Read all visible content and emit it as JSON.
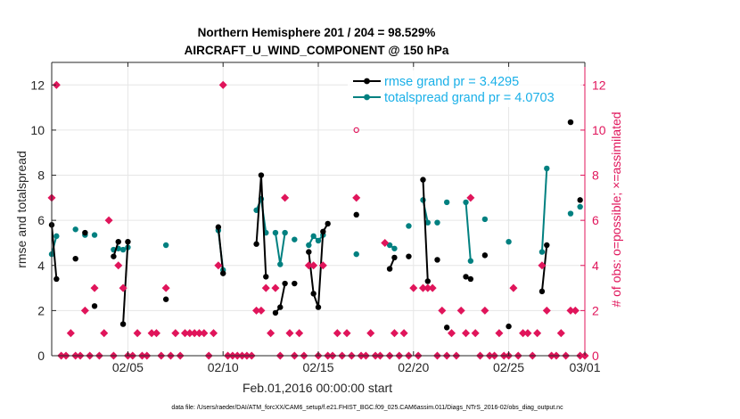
{
  "chart_data": {
    "type": "line",
    "title_line1": "Northern Hemisphere 201  / 204 = 98.529%",
    "title_line2": "AIRCRAFT_U_WIND_COMPONENT @ 150 hPa",
    "xlabel": "Feb.01,2016 00:00:00 start",
    "ylabel_left": "rmse and totalspread",
    "ylabel_right": "# of obs: o=possible; ×=assimilated",
    "footer": "data file: /Users/raeder/DAI/ATM_forcXX/CAM6_setup/f.e21.FHIST_BGC.f09_025.CAM6assim.011/Diags_NTrS_2016-02/obs_diag_output.nc",
    "xlim": [
      1,
      29
    ],
    "ylim_left": [
      0,
      13
    ],
    "ylim_right": [
      0,
      13
    ],
    "x_ticks": [
      5,
      10,
      15,
      20,
      25,
      29
    ],
    "x_tick_labels": [
      "02/05",
      "02/10",
      "02/15",
      "02/20",
      "02/25",
      "03/01"
    ],
    "y_ticks_left": [
      0,
      2,
      4,
      6,
      8,
      10,
      12
    ],
    "y_tick_labels_left": [
      "0",
      "2",
      "4",
      "6",
      "8",
      "10",
      "12"
    ],
    "y_ticks_right": [
      0,
      2,
      4,
      6,
      8,
      10,
      12
    ],
    "y_tick_labels_right": [
      "0",
      "2",
      "4",
      "6",
      "8",
      "10",
      "12"
    ],
    "grid": true,
    "legend_position": "top-right",
    "colors": {
      "rmse": "#000000",
      "totalspread": "#008080",
      "obs": "#e0155b",
      "legend_text": "#1ab0e8",
      "axes": "#262626",
      "grid": "#e6e6e6"
    },
    "series": [
      {
        "name": "rmse grand pr = 3.4295",
        "segments": [
          [
            [
              1.0,
              5.8
            ],
            [
              1.25,
              3.4
            ]
          ],
          [
            [
              2.25,
              4.3
            ]
          ],
          [
            [
              2.75,
              5.45
            ]
          ],
          [
            [
              3.25,
              2.2
            ]
          ],
          [
            [
              4.25,
              4.4
            ],
            [
              4.5,
              5.05
            ]
          ],
          [
            [
              4.75,
              1.4
            ],
            [
              5.0,
              5.05
            ]
          ],
          [
            [
              7.0,
              2.5
            ]
          ],
          [
            [
              9.75,
              5.7
            ],
            [
              10.0,
              3.65
            ]
          ],
          [
            [
              11.75,
              4.95
            ],
            [
              12.0,
              8.0
            ],
            [
              12.25,
              3.5
            ]
          ],
          [
            [
              12.75,
              1.9
            ],
            [
              13.0,
              2.15
            ],
            [
              13.25,
              3.2
            ]
          ],
          [
            [
              13.75,
              3.2
            ]
          ],
          [
            [
              14.5,
              4.6
            ],
            [
              14.75,
              2.75
            ],
            [
              15.0,
              2.15
            ],
            [
              15.25,
              5.5
            ],
            [
              15.5,
              5.85
            ]
          ],
          [
            [
              17.0,
              6.25
            ]
          ],
          [
            [
              18.75,
              3.85
            ],
            [
              19.0,
              4.35
            ]
          ],
          [
            [
              19.75,
              4.4
            ]
          ],
          [
            [
              20.5,
              7.8
            ],
            [
              20.75,
              3.3
            ]
          ],
          [
            [
              21.25,
              4.25
            ]
          ],
          [
            [
              21.75,
              1.25
            ]
          ],
          [
            [
              22.75,
              3.5
            ],
            [
              23.0,
              3.4
            ]
          ],
          [
            [
              23.75,
              4.45
            ]
          ],
          [
            [
              25.0,
              1.3
            ]
          ],
          [
            [
              26.75,
              2.85
            ],
            [
              27.0,
              4.9
            ]
          ],
          [
            [
              28.25,
              10.35
            ]
          ],
          [
            [
              28.75,
              6.9
            ]
          ]
        ]
      },
      {
        "name": "totalspread grand pr = 4.0703",
        "segments": [
          [
            [
              1.0,
              4.5
            ],
            [
              1.25,
              5.3
            ]
          ],
          [
            [
              2.25,
              5.6
            ]
          ],
          [
            [
              2.75,
              5.35
            ]
          ],
          [
            [
              3.25,
              5.35
            ]
          ],
          [
            [
              4.25,
              4.7
            ],
            [
              4.5,
              4.75
            ]
          ],
          [
            [
              4.75,
              4.7
            ],
            [
              5.0,
              4.8
            ]
          ],
          [
            [
              7.0,
              4.9
            ]
          ],
          [
            [
              9.75,
              5.55
            ],
            [
              10.0,
              3.8
            ]
          ],
          [
            [
              11.75,
              6.45
            ],
            [
              12.0,
              6.95
            ],
            [
              12.25,
              5.45
            ]
          ],
          [
            [
              12.75,
              5.45
            ],
            [
              13.0,
              4.05
            ],
            [
              13.25,
              5.45
            ]
          ],
          [
            [
              13.75,
              5.15
            ]
          ],
          [
            [
              14.5,
              4.9
            ],
            [
              14.75,
              5.3
            ],
            [
              15.0,
              5.1
            ],
            [
              15.25,
              5.35
            ]
          ],
          [
            [
              17.0,
              4.5
            ]
          ],
          [
            [
              18.75,
              4.9
            ],
            [
              19.0,
              4.75
            ]
          ],
          [
            [
              19.75,
              5.75
            ]
          ],
          [
            [
              20.5,
              6.9
            ],
            [
              20.75,
              5.9
            ]
          ],
          [
            [
              21.25,
              5.9
            ]
          ],
          [
            [
              21.75,
              6.8
            ]
          ],
          [
            [
              22.75,
              6.8
            ],
            [
              23.0,
              4.2
            ]
          ],
          [
            [
              23.75,
              6.05
            ]
          ],
          [
            [
              25.0,
              5.05
            ]
          ],
          [
            [
              26.75,
              4.6
            ],
            [
              27.0,
              8.3
            ]
          ],
          [
            [
              28.25,
              6.3
            ]
          ],
          [
            [
              28.75,
              6.6
            ]
          ]
        ]
      },
      {
        "name": "obs_possible",
        "values_x": [
          17.0
        ],
        "values_y": [
          10.0
        ]
      },
      {
        "name": "obs_assimilated",
        "x": [
          1.0,
          1.25,
          1.5,
          1.75,
          2.0,
          2.25,
          2.5,
          2.75,
          3.0,
          3.25,
          3.5,
          3.75,
          4.0,
          4.25,
          4.5,
          4.75,
          5.0,
          5.25,
          5.5,
          5.75,
          6.0,
          6.25,
          6.5,
          6.75,
          7.0,
          7.25,
          7.5,
          7.75,
          8.0,
          8.25,
          8.5,
          8.75,
          9.0,
          9.25,
          9.5,
          9.75,
          10.0,
          10.25,
          10.5,
          10.75,
          11.0,
          11.25,
          11.5,
          11.75,
          12.0,
          12.25,
          12.5,
          12.75,
          13.0,
          13.25,
          13.5,
          13.75,
          14.0,
          14.25,
          14.5,
          14.75,
          15.0,
          15.25,
          15.5,
          15.75,
          16.0,
          16.25,
          16.5,
          16.75,
          17.0,
          17.25,
          17.5,
          17.75,
          18.0,
          18.25,
          18.5,
          18.75,
          19.0,
          19.25,
          19.5,
          19.75,
          20.0,
          20.25,
          20.5,
          20.75,
          21.0,
          21.25,
          21.5,
          21.75,
          22.0,
          22.25,
          22.5,
          22.75,
          23.0,
          23.25,
          23.5,
          23.75,
          24.0,
          24.25,
          24.5,
          24.75,
          25.0,
          25.25,
          25.5,
          25.75,
          26.0,
          26.25,
          26.5,
          26.75,
          27.0,
          27.25,
          27.5,
          27.75,
          28.0,
          28.25,
          28.5,
          28.75,
          29.0
        ],
        "y": [
          7,
          12,
          0,
          0,
          1,
          0,
          0,
          2,
          0,
          3,
          0,
          1,
          6,
          0,
          4,
          3,
          0,
          0,
          1,
          0,
          0,
          1,
          1,
          0,
          3,
          0,
          1,
          0,
          1,
          1,
          1,
          1,
          1,
          0,
          1,
          4,
          12,
          0,
          0,
          0,
          0,
          0,
          0,
          2,
          2,
          3,
          1,
          3,
          0,
          7,
          1,
          0,
          1,
          0,
          4,
          4,
          0,
          4,
          0,
          0,
          1,
          0,
          1,
          0,
          7,
          0,
          0,
          1,
          0,
          0,
          5,
          0,
          1,
          0,
          1,
          0,
          3,
          0,
          3,
          3,
          3,
          0,
          2,
          0,
          1,
          0,
          2,
          1,
          7,
          1,
          0,
          2,
          0,
          0,
          1,
          0,
          0,
          3,
          0,
          1,
          1,
          0,
          1,
          4,
          2,
          0,
          0,
          1,
          0,
          2,
          2,
          0,
          0
        ]
      }
    ]
  }
}
